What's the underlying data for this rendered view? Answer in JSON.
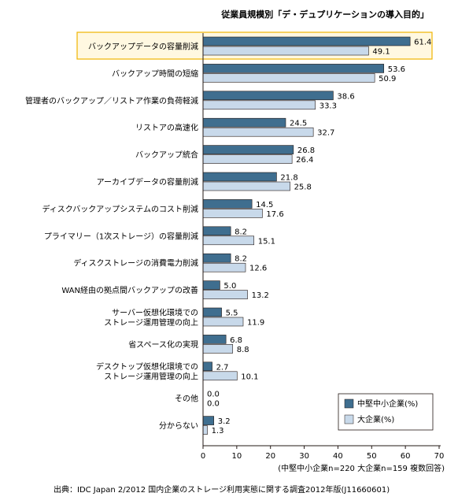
{
  "chart_data": {
    "type": "bar",
    "orientation": "horizontal",
    "title": "従業員規模別「デ・デュプリケーションの導入目的」",
    "categories": [
      "バックアップデータの容量削減",
      "バックアップ時間の短縮",
      "管理者のバックアップ／リストア作業の負荷軽減",
      "リストアの高速化",
      "バックアップ統合",
      "アーカイブデータの容量削減",
      "ディスクバックアップシステムのコスト削減",
      "プライマリー（1次ストレージ）の容量削減",
      "ディスクストレージの消費電力削減",
      "WAN経由の拠点間バックアップの改善",
      "サーバー仮想化環境での\nストレージ運用管理の向上",
      "省スペース化の実現",
      "デスクトップ仮想化環境での\nストレージ運用管理の向上",
      "その他",
      "分からない"
    ],
    "series": [
      {
        "name": "中堅中小企業(%)",
        "color": "#3f6e8f",
        "values": [
          61.4,
          53.6,
          38.6,
          24.5,
          26.8,
          21.8,
          14.5,
          8.2,
          8.2,
          5.0,
          5.5,
          6.8,
          2.7,
          0.0,
          3.2
        ]
      },
      {
        "name": "大企業(%)",
        "color": "#c8d9ea",
        "values": [
          49.1,
          50.9,
          33.3,
          32.7,
          26.4,
          25.8,
          17.6,
          15.1,
          12.6,
          13.2,
          11.9,
          8.8,
          10.1,
          0.0,
          1.3
        ]
      }
    ],
    "xlim": [
      0,
      70
    ],
    "xticks": [
      "0",
      "10",
      "20",
      "30",
      "40",
      "50",
      "60",
      "70"
    ],
    "highlighted_category": "バックアップデータの容量削減",
    "legend_position": "bottom-right",
    "note": "(中堅中小企業n=220 大企業n=159 複数回答)",
    "source": "出典：IDC Japan 2/2012 国内企業のストレージ利用実態に関する調査2012年版(J11660601)"
  },
  "colors": {
    "highlight_border": "#f0b400",
    "highlight_fill": "#fff8e1",
    "axis": "#231815"
  }
}
